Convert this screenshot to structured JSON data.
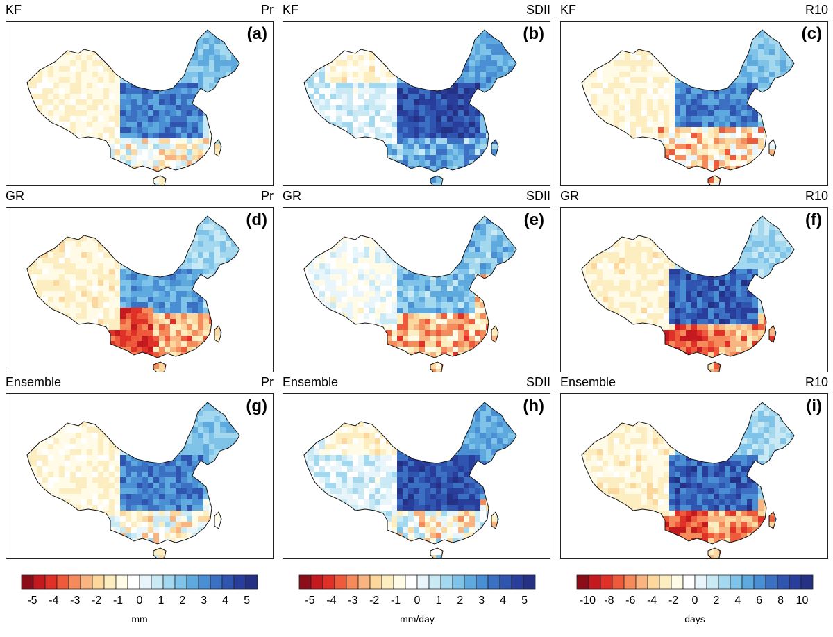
{
  "panels": [
    {
      "model": "KF",
      "variable": "Pr",
      "tag": "(a)",
      "pattern": "kf",
      "scale": 0
    },
    {
      "model": "KF",
      "variable": "SDII",
      "tag": "(b)",
      "pattern": "kfsdii",
      "scale": 1
    },
    {
      "model": "KF",
      "variable": "R10",
      "tag": "(c)",
      "pattern": "kfr10",
      "scale": 2
    },
    {
      "model": "GR",
      "variable": "Pr",
      "tag": "(d)",
      "pattern": "gr",
      "scale": 0
    },
    {
      "model": "GR",
      "variable": "SDII",
      "tag": "(e)",
      "pattern": "grsdii",
      "scale": 1
    },
    {
      "model": "GR",
      "variable": "R10",
      "tag": "(f)",
      "pattern": "grr10",
      "scale": 2
    },
    {
      "model": "Ensemble",
      "variable": "Pr",
      "tag": "(g)",
      "pattern": "ens",
      "scale": 0
    },
    {
      "model": "Ensemble",
      "variable": "SDII",
      "tag": "(h)",
      "pattern": "enssdii",
      "scale": 1
    },
    {
      "model": "Ensemble",
      "variable": "R10",
      "tag": "(i)",
      "pattern": "ensr10",
      "scale": 2
    }
  ],
  "colorbars": [
    {
      "unit": "mm",
      "ticks": [
        "-5",
        "-4",
        "-3",
        "-2",
        "-1",
        "0",
        "1",
        "2",
        "3",
        "4",
        "5"
      ],
      "range": [
        -5.5,
        5.5
      ]
    },
    {
      "unit": "mm/day",
      "ticks": [
        "-5",
        "-4",
        "-3",
        "-2",
        "-1",
        "0",
        "1",
        "2",
        "3",
        "4",
        "5"
      ],
      "range": [
        -5.5,
        5.5
      ]
    },
    {
      "unit": "days",
      "ticks": [
        "-10",
        "-8",
        "-6",
        "-4",
        "-2",
        "0",
        "2",
        "4",
        "6",
        "8",
        "10"
      ],
      "range": [
        -11,
        11
      ]
    }
  ],
  "palette": [
    "#8b0d1a",
    "#c41a1f",
    "#e03128",
    "#ee5a3c",
    "#f58b5a",
    "#f9b581",
    "#fcd79e",
    "#fdeec2",
    "#fffbe6",
    "#ffffff",
    "#e8f6fb",
    "#c9eaf5",
    "#a4d8ef",
    "#7fc3e9",
    "#5ea9dd",
    "#4a8ed3",
    "#3b70c2",
    "#2f55b0",
    "#283e9a",
    "#243184"
  ]
}
